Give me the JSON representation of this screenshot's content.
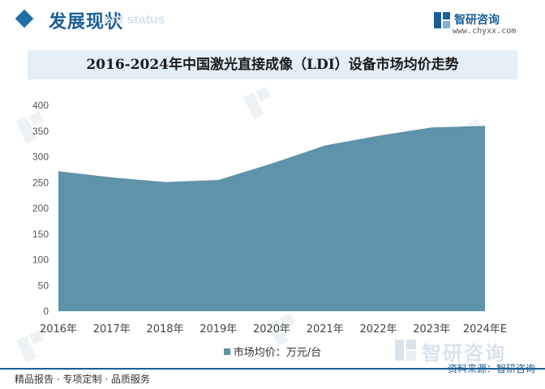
{
  "header": {
    "section_title": "发展现状",
    "section_en": "ent status",
    "brand_name": "智研咨询",
    "brand_url": "www.chyxx.com"
  },
  "chart_data": {
    "type": "area",
    "title": "2016-2024年中国激光直接成像（LDI）设备市场均价走势",
    "categories": [
      "2016年",
      "2017年",
      "2018年",
      "2019年",
      "2020年",
      "2021年",
      "2022年",
      "2023年",
      "2024年E"
    ],
    "series": [
      {
        "name": "市场均价：万元/台",
        "values": [
          272,
          260,
          251,
          255,
          287,
          322,
          341,
          357,
          360
        ],
        "color": "#5e93aa"
      }
    ],
    "ylim": [
      0,
      400
    ],
    "yticks": [
      0,
      50,
      100,
      150,
      200,
      250,
      300,
      350,
      400
    ],
    "grid": false,
    "legend": "bottom"
  },
  "source": "资料来源：智研咨询",
  "watermark_text": "智研咨询",
  "footer": {
    "text": "精品报告 · 专项定制 · 品质服务",
    "line_color": "#1a5e96"
  }
}
